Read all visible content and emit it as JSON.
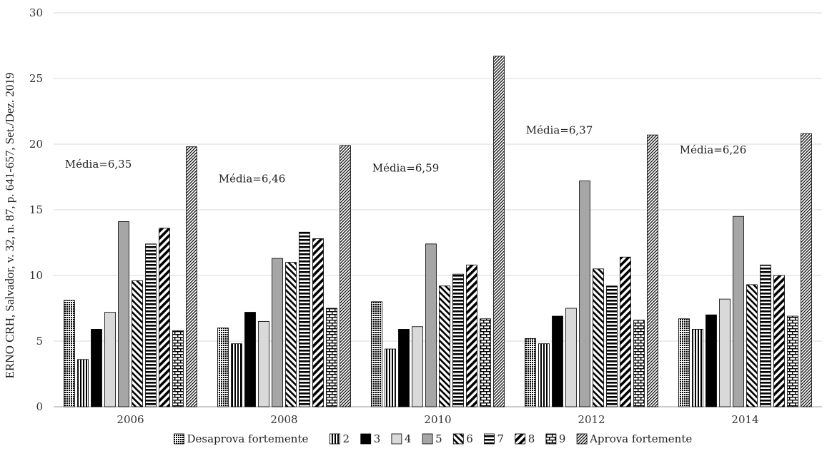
{
  "side_caption": "ERNO CRH, Salvador, v. 32, n. 87, p. 641-657, Set./Dez. 2019",
  "colors": {
    "black": "#000000",
    "light_gray": "#d9d9d9",
    "mid_gray": "#a6a6a6",
    "grid": "#d9d9d9",
    "axis": "#999999"
  },
  "chart_data": {
    "type": "bar",
    "title": "",
    "xlabel": "",
    "ylabel": "",
    "ylim": [
      0,
      30
    ],
    "yticks": [
      "0",
      "5",
      "10",
      "15",
      "20",
      "25",
      "30"
    ],
    "grid": true,
    "legend_position": "bottom",
    "categories": [
      "2006",
      "2008",
      "2010",
      "2012",
      "2014"
    ],
    "series": [
      {
        "name": "Desaprova fortemente",
        "pattern": "dots",
        "values": [
          8.1,
          6.0,
          8.0,
          5.2,
          6.7
        ]
      },
      {
        "name": "2",
        "pattern": "vlines",
        "values": [
          3.6,
          4.8,
          4.4,
          4.8,
          5.9
        ]
      },
      {
        "name": "3",
        "pattern": "black",
        "values": [
          5.9,
          7.2,
          5.9,
          6.9,
          7.0
        ]
      },
      {
        "name": "4",
        "pattern": "lightgray",
        "values": [
          7.2,
          6.5,
          6.1,
          7.5,
          8.2
        ]
      },
      {
        "name": "5",
        "pattern": "midgray",
        "values": [
          14.1,
          11.3,
          12.4,
          17.2,
          14.5
        ]
      },
      {
        "name": "6",
        "pattern": "diag-fwd",
        "values": [
          9.6,
          11.0,
          9.2,
          10.5,
          9.3
        ]
      },
      {
        "name": "7",
        "pattern": "hlines",
        "values": [
          12.4,
          13.3,
          10.1,
          9.2,
          10.8
        ]
      },
      {
        "name": "8",
        "pattern": "diag-back",
        "values": [
          13.6,
          12.8,
          10.8,
          11.4,
          10.0
        ]
      },
      {
        "name": "9",
        "pattern": "bricks",
        "values": [
          5.8,
          7.5,
          6.7,
          6.6,
          6.9
        ]
      },
      {
        "name": "Aprova fortemente",
        "pattern": "fine-diag",
        "values": [
          19.8,
          19.9,
          26.7,
          20.7,
          20.8
        ]
      }
    ],
    "annotations": [
      {
        "text": "Média=6,35",
        "category": "2006",
        "y": 18.2
      },
      {
        "text": "Média=6,46",
        "category": "2008",
        "y": 17.1
      },
      {
        "text": "Média=6,59",
        "category": "2010",
        "y": 17.9
      },
      {
        "text": "Média=6,37",
        "category": "2012",
        "y": 20.8
      },
      {
        "text": "Média=6,26",
        "category": "2014",
        "y": 19.3
      }
    ]
  }
}
